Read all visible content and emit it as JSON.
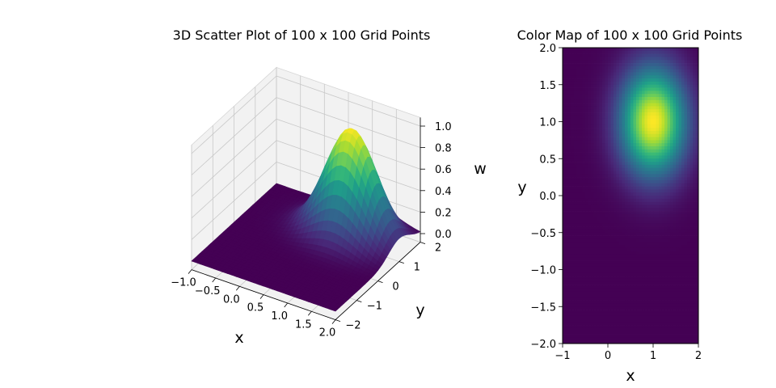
{
  "chart_data": [
    {
      "type": "surface",
      "title": "3D Scatter Plot of 100 x 100 Grid Points",
      "xlabel": "x",
      "ylabel": "y",
      "zlabel": "w",
      "xlim": [
        -1,
        2
      ],
      "ylim": [
        -2,
        2
      ],
      "zlim": [
        0,
        1
      ],
      "xticks": [
        "−1.0",
        "−0.5",
        "0.0",
        "0.5",
        "1.0",
        "1.5",
        "2.0"
      ],
      "yticks": [
        "−2",
        "−1",
        "0",
        "1",
        "2"
      ],
      "zticks": [
        "0.0",
        "0.2",
        "0.4",
        "0.6",
        "0.8",
        "1.0"
      ],
      "grid_points": [
        100,
        100
      ],
      "function": {
        "peak": 1.0,
        "center_x": 1,
        "center_y": 1,
        "sigma": 0.5
      },
      "colormap": "viridis",
      "grid": true
    },
    {
      "type": "heatmap",
      "title": "Color Map of 100 x 100 Grid Points",
      "xlabel": "x",
      "ylabel": "y",
      "xlim": [
        -1,
        2
      ],
      "ylim": [
        -2,
        2
      ],
      "xticks": [
        "−1",
        "0",
        "1",
        "2"
      ],
      "yticks": [
        "−2.0",
        "−1.5",
        "−1.0",
        "−0.5",
        "0.0",
        "0.5",
        "1.0",
        "1.5",
        "2.0"
      ],
      "grid_points": [
        100,
        100
      ],
      "function": {
        "peak": 1.0,
        "center_x": 1,
        "center_y": 1,
        "sigma": 0.5
      },
      "colormap": "viridis"
    }
  ]
}
